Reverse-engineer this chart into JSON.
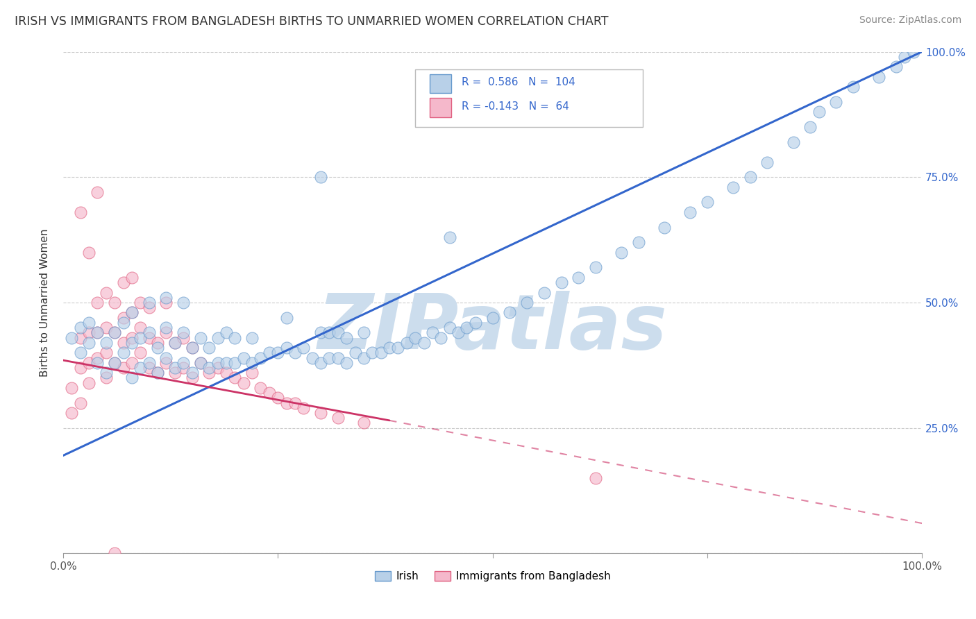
{
  "title": "IRISH VS IMMIGRANTS FROM BANGLADESH BIRTHS TO UNMARRIED WOMEN CORRELATION CHART",
  "source": "Source: ZipAtlas.com",
  "ylabel": "Births to Unmarried Women",
  "x_ticks": [
    0.0,
    0.25,
    0.5,
    0.75,
    1.0
  ],
  "x_tick_labels": [
    "0.0%",
    "",
    "",
    "",
    "100.0%"
  ],
  "y_ticks": [
    0.0,
    0.25,
    0.5,
    0.75,
    1.0
  ],
  "y_tick_labels": [
    "",
    "25.0%",
    "50.0%",
    "75.0%",
    "100.0%"
  ],
  "irish_color": "#b8d0e8",
  "irish_edge_color": "#6699cc",
  "bangladesh_color": "#f5b8cb",
  "bangladesh_edge_color": "#e06080",
  "irish_line_color": "#3366cc",
  "bangladesh_line_color": "#cc3366",
  "irish_R": 0.586,
  "irish_N": 104,
  "bangladesh_R": -0.143,
  "bangladesh_N": 64,
  "watermark": "ZIPatlas",
  "watermark_color": "#ccdded",
  "irish_line_x0": 0.0,
  "irish_line_y0": 0.195,
  "irish_line_x1": 1.0,
  "irish_line_y1": 1.0,
  "bang_line_x0": 0.0,
  "bang_line_y0": 0.385,
  "bang_line_x1": 0.38,
  "bang_line_y1": 0.265,
  "bang_line_dash_x0": 0.38,
  "bang_line_dash_y0": 0.265,
  "bang_line_dash_x1": 1.0,
  "bang_line_dash_y1": 0.06,
  "irish_scatter_x": [
    0.01,
    0.02,
    0.02,
    0.03,
    0.03,
    0.04,
    0.04,
    0.05,
    0.05,
    0.06,
    0.06,
    0.07,
    0.07,
    0.08,
    0.08,
    0.08,
    0.09,
    0.09,
    0.1,
    0.1,
    0.1,
    0.11,
    0.11,
    0.12,
    0.12,
    0.12,
    0.13,
    0.13,
    0.14,
    0.14,
    0.14,
    0.15,
    0.15,
    0.16,
    0.16,
    0.17,
    0.17,
    0.18,
    0.18,
    0.19,
    0.19,
    0.2,
    0.2,
    0.21,
    0.22,
    0.22,
    0.23,
    0.24,
    0.25,
    0.26,
    0.26,
    0.27,
    0.28,
    0.29,
    0.3,
    0.3,
    0.31,
    0.31,
    0.32,
    0.32,
    0.33,
    0.33,
    0.34,
    0.35,
    0.35,
    0.36,
    0.37,
    0.38,
    0.39,
    0.4,
    0.41,
    0.42,
    0.43,
    0.44,
    0.45,
    0.46,
    0.47,
    0.48,
    0.5,
    0.52,
    0.54,
    0.56,
    0.58,
    0.6,
    0.62,
    0.65,
    0.67,
    0.7,
    0.73,
    0.75,
    0.78,
    0.8,
    0.82,
    0.85,
    0.87,
    0.88,
    0.9,
    0.92,
    0.95,
    0.97,
    0.98,
    0.99,
    0.45,
    0.3
  ],
  "irish_scatter_y": [
    0.43,
    0.4,
    0.45,
    0.42,
    0.46,
    0.38,
    0.44,
    0.36,
    0.42,
    0.38,
    0.44,
    0.4,
    0.46,
    0.35,
    0.42,
    0.48,
    0.37,
    0.43,
    0.38,
    0.44,
    0.5,
    0.36,
    0.41,
    0.39,
    0.45,
    0.51,
    0.37,
    0.42,
    0.38,
    0.44,
    0.5,
    0.36,
    0.41,
    0.38,
    0.43,
    0.37,
    0.41,
    0.38,
    0.43,
    0.38,
    0.44,
    0.38,
    0.43,
    0.39,
    0.38,
    0.43,
    0.39,
    0.4,
    0.4,
    0.41,
    0.47,
    0.4,
    0.41,
    0.39,
    0.38,
    0.44,
    0.39,
    0.44,
    0.39,
    0.44,
    0.38,
    0.43,
    0.4,
    0.39,
    0.44,
    0.4,
    0.4,
    0.41,
    0.41,
    0.42,
    0.43,
    0.42,
    0.44,
    0.43,
    0.45,
    0.44,
    0.45,
    0.46,
    0.47,
    0.48,
    0.5,
    0.52,
    0.54,
    0.55,
    0.57,
    0.6,
    0.62,
    0.65,
    0.68,
    0.7,
    0.73,
    0.75,
    0.78,
    0.82,
    0.85,
    0.88,
    0.9,
    0.93,
    0.95,
    0.97,
    0.99,
    1.0,
    0.63,
    0.75
  ],
  "bangladesh_scatter_x": [
    0.01,
    0.01,
    0.02,
    0.02,
    0.02,
    0.03,
    0.03,
    0.03,
    0.04,
    0.04,
    0.04,
    0.05,
    0.05,
    0.05,
    0.05,
    0.06,
    0.06,
    0.06,
    0.07,
    0.07,
    0.07,
    0.07,
    0.08,
    0.08,
    0.08,
    0.08,
    0.09,
    0.09,
    0.09,
    0.1,
    0.1,
    0.1,
    0.11,
    0.11,
    0.12,
    0.12,
    0.12,
    0.13,
    0.13,
    0.14,
    0.14,
    0.15,
    0.15,
    0.16,
    0.17,
    0.18,
    0.19,
    0.2,
    0.21,
    0.22,
    0.23,
    0.24,
    0.25,
    0.26,
    0.27,
    0.28,
    0.3,
    0.32,
    0.35,
    0.03,
    0.02,
    0.04,
    0.62,
    0.06
  ],
  "bangladesh_scatter_y": [
    0.33,
    0.28,
    0.37,
    0.3,
    0.43,
    0.38,
    0.44,
    0.34,
    0.39,
    0.44,
    0.5,
    0.35,
    0.4,
    0.45,
    0.52,
    0.38,
    0.44,
    0.5,
    0.37,
    0.42,
    0.47,
    0.54,
    0.38,
    0.43,
    0.48,
    0.55,
    0.4,
    0.45,
    0.5,
    0.37,
    0.43,
    0.49,
    0.36,
    0.42,
    0.38,
    0.44,
    0.5,
    0.36,
    0.42,
    0.37,
    0.43,
    0.35,
    0.41,
    0.38,
    0.36,
    0.37,
    0.36,
    0.35,
    0.34,
    0.36,
    0.33,
    0.32,
    0.31,
    0.3,
    0.3,
    0.29,
    0.28,
    0.27,
    0.26,
    0.6,
    0.68,
    0.72,
    0.15,
    0.0
  ]
}
